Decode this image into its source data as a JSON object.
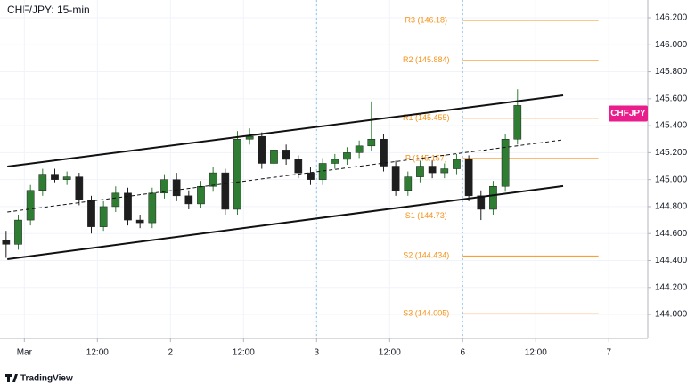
{
  "chart_data": {
    "type": "candlestick",
    "title": "CHF/JPY: 15-min",
    "x": [
      -3,
      -1,
      1,
      3,
      5,
      7,
      9,
      11,
      13,
      15,
      17,
      19,
      21,
      23,
      25,
      27,
      29,
      31,
      33,
      35,
      37,
      39,
      41,
      43,
      45,
      47,
      49,
      51,
      53,
      55,
      57,
      59,
      61,
      63,
      65,
      67,
      69,
      71,
      73,
      75,
      77,
      79,
      81
    ],
    "open": [
      144.55,
      144.52,
      144.7,
      144.92,
      145.04,
      145.0,
      145.02,
      144.85,
      144.65,
      144.8,
      144.9,
      144.7,
      144.68,
      144.9,
      145.0,
      144.88,
      144.82,
      144.95,
      145.05,
      144.78,
      145.3,
      145.32,
      145.12,
      145.22,
      145.15,
      145.05,
      145.0,
      145.12,
      145.15,
      145.2,
      145.25,
      145.3,
      145.1,
      144.92,
      145.02,
      145.1,
      145.05,
      145.08,
      145.15,
      144.88,
      144.78,
      144.95,
      145.3
    ],
    "high": [
      144.62,
      144.74,
      144.96,
      145.08,
      145.08,
      145.06,
      145.05,
      144.88,
      144.84,
      144.95,
      144.94,
      144.74,
      144.94,
      145.04,
      145.05,
      144.92,
      144.99,
      145.09,
      145.08,
      145.36,
      145.38,
      145.35,
      145.26,
      145.26,
      145.18,
      145.09,
      145.16,
      145.19,
      145.24,
      145.29,
      145.58,
      145.34,
      145.14,
      145.06,
      145.14,
      145.14,
      145.12,
      145.19,
      145.18,
      144.92,
      144.99,
      145.34,
      145.67
    ],
    "low": [
      144.42,
      144.48,
      144.66,
      144.88,
      144.98,
      144.96,
      144.81,
      144.6,
      144.62,
      144.76,
      144.66,
      144.64,
      144.64,
      144.86,
      144.84,
      144.78,
      144.79,
      144.91,
      144.74,
      144.74,
      145.26,
      145.08,
      145.08,
      145.11,
      145.01,
      144.96,
      144.96,
      145.08,
      145.11,
      145.16,
      145.21,
      145.06,
      144.88,
      144.88,
      144.98,
      145.01,
      145.01,
      145.04,
      144.84,
      144.7,
      144.74,
      144.91,
      145.26
    ],
    "close": [
      144.52,
      144.7,
      144.92,
      145.04,
      145.0,
      145.02,
      144.85,
      144.65,
      144.8,
      144.9,
      144.7,
      144.68,
      144.9,
      145.0,
      144.88,
      144.82,
      144.95,
      145.05,
      144.78,
      145.3,
      145.32,
      145.12,
      145.22,
      145.15,
      145.05,
      145.0,
      145.12,
      145.15,
      145.2,
      145.25,
      145.3,
      145.1,
      144.92,
      145.02,
      145.1,
      145.05,
      145.08,
      145.15,
      144.88,
      144.78,
      144.95,
      145.3,
      145.55
    ],
    "up_color": "#2e7d32",
    "down_color": "#1e1e1e",
    "xlim": [
      -4,
      102.4
    ],
    "ylim": [
      143.822,
      146.332
    ],
    "xticks": [
      {
        "value": 0,
        "label": "Mar"
      },
      {
        "value": 12,
        "label": "12:00"
      },
      {
        "value": 24,
        "label": "2"
      },
      {
        "value": 36,
        "label": "12:00"
      },
      {
        "value": 48,
        "label": "3"
      },
      {
        "value": 60,
        "label": "12:00"
      },
      {
        "value": 72,
        "label": "6"
      },
      {
        "value": 84,
        "label": "12:00"
      },
      {
        "value": 96,
        "label": "7"
      }
    ],
    "yticks": [
      {
        "value": 144.0,
        "label": "144.000"
      },
      {
        "value": 144.2,
        "label": "144.200"
      },
      {
        "value": 144.4,
        "label": "144.400"
      },
      {
        "value": 144.6,
        "label": "144.600"
      },
      {
        "value": 144.8,
        "label": "144.800"
      },
      {
        "value": 145.0,
        "label": "145.000"
      },
      {
        "value": 145.2,
        "label": "145.200"
      },
      {
        "value": 145.4,
        "label": "145.400"
      },
      {
        "value": 145.6,
        "label": "145.600"
      },
      {
        "value": 145.8,
        "label": "145.800"
      },
      {
        "value": 146.0,
        "label": "146.000"
      },
      {
        "value": 146.2,
        "label": "146.200"
      }
    ],
    "session_lines": [
      48,
      72
    ],
    "channels": [
      {
        "x": [
          -2.8,
          88.5
        ],
        "y": [
          145.097,
          145.625
        ],
        "style": "solid"
      },
      {
        "x": [
          -2.8,
          88.5
        ],
        "y": [
          144.41,
          144.952
        ],
        "style": "solid"
      },
      {
        "x": [
          -2.8,
          88.5
        ],
        "y": [
          144.76,
          145.295
        ],
        "style": "dashed"
      }
    ],
    "pivots": [
      {
        "label": "R3 (146.18)",
        "value": 146.18
      },
      {
        "label": "R2 (145.884)",
        "value": 145.884
      },
      {
        "label": "R1 (145.455)",
        "value": 145.455
      },
      {
        "label": "P (145.157)",
        "value": 145.157
      },
      {
        "label": "S1 (144.73)",
        "value": 144.73
      },
      {
        "label": "S2 (144.434)",
        "value": 144.434
      },
      {
        "label": "S3 (144.005)",
        "value": 144.005
      }
    ],
    "pivot_color": "#f7931a",
    "symbol_label": {
      "text": "CHFJPY",
      "value": 145.49,
      "color": "#e91e8c"
    },
    "brand": "TradingView"
  }
}
